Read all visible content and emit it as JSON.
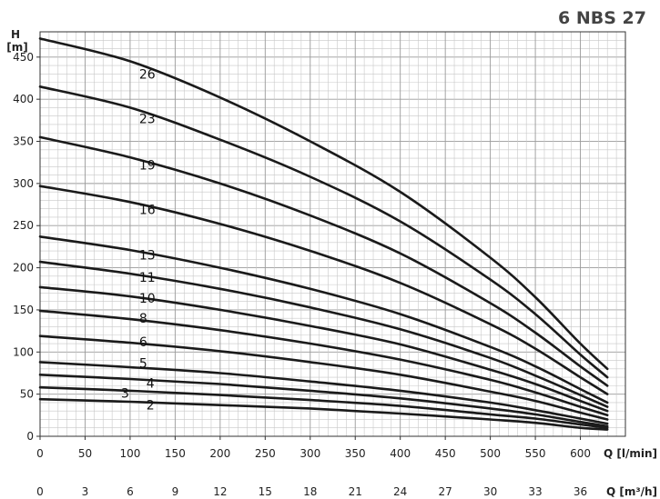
{
  "chart_data": {
    "type": "line",
    "title": "6 NBS 27",
    "ylabel": "H",
    "ylabel_unit": "[m]",
    "xlabel": "Q [l/min]",
    "xlabel2": "Q [m³/h]",
    "xlim": [
      0,
      650
    ],
    "ylim": [
      0,
      480
    ],
    "x_ticks": [
      0,
      50,
      100,
      150,
      200,
      250,
      300,
      350,
      400,
      450,
      500,
      550,
      600
    ],
    "x2_ticks": [
      0,
      3,
      6,
      9,
      12,
      15,
      18,
      21,
      24,
      27,
      30,
      33,
      36
    ],
    "y_ticks": [
      0,
      50,
      100,
      150,
      200,
      250,
      300,
      350,
      400,
      450
    ],
    "grid": true,
    "series": [
      {
        "name": "26",
        "label_at": [
          110,
          430
        ],
        "x": [
          0,
          100,
          200,
          300,
          400,
          500,
          550,
          600,
          630
        ],
        "y": [
          472,
          445,
          402,
          350,
          290,
          212,
          165,
          110,
          80
        ]
      },
      {
        "name": "23",
        "label_at": [
          110,
          377
        ],
        "x": [
          0,
          100,
          200,
          300,
          400,
          500,
          550,
          600,
          630
        ],
        "y": [
          415,
          390,
          352,
          308,
          255,
          186,
          145,
          97,
          70
        ]
      },
      {
        "name": "19",
        "label_at": [
          110,
          322
        ],
        "x": [
          0,
          100,
          200,
          300,
          400,
          500,
          550,
          600,
          630
        ],
        "y": [
          355,
          331,
          300,
          262,
          217,
          158,
          123,
          83,
          60
        ]
      },
      {
        "name": "16",
        "label_at": [
          110,
          269
        ],
        "x": [
          0,
          100,
          200,
          300,
          400,
          500,
          550,
          600,
          630
        ],
        "y": [
          297,
          278,
          252,
          220,
          182,
          133,
          104,
          70,
          50
        ]
      },
      {
        "name": "13",
        "label_at": [
          110,
          215
        ],
        "x": [
          0,
          100,
          200,
          300,
          400,
          500,
          550,
          600,
          630
        ],
        "y": [
          237,
          221,
          200,
          175,
          145,
          106,
          83,
          56,
          40
        ]
      },
      {
        "name": "11",
        "label_at": [
          110,
          189
        ],
        "x": [
          0,
          100,
          200,
          300,
          400,
          500,
          550,
          600,
          630
        ],
        "y": [
          207,
          193,
          175,
          153,
          127,
          93,
          72,
          49,
          35
        ]
      },
      {
        "name": "10",
        "label_at": [
          110,
          164
        ],
        "x": [
          0,
          100,
          200,
          300,
          400,
          500,
          550,
          600,
          630
        ],
        "y": [
          177,
          166,
          150,
          131,
          109,
          79,
          62,
          42,
          30
        ]
      },
      {
        "name": "8",
        "label_at": [
          110,
          140
        ],
        "x": [
          0,
          100,
          200,
          300,
          400,
          500,
          550,
          600,
          630
        ],
        "y": [
          149,
          139,
          126,
          110,
          91,
          67,
          52,
          35,
          25
        ]
      },
      {
        "name": "6",
        "label_at": [
          110,
          112
        ],
        "x": [
          0,
          100,
          200,
          300,
          400,
          500,
          550,
          600,
          630
        ],
        "y": [
          119,
          111,
          101,
          88,
          73,
          53,
          42,
          28,
          20
        ]
      },
      {
        "name": "5",
        "label_at": [
          110,
          87
        ],
        "x": [
          0,
          100,
          200,
          300,
          400,
          500,
          550,
          600,
          630
        ],
        "y": [
          88,
          82,
          75,
          65,
          54,
          40,
          31,
          21,
          15
        ]
      },
      {
        "name": "4",
        "label_at": [
          118,
          63
        ],
        "x": [
          0,
          100,
          200,
          300,
          400,
          500,
          550,
          600,
          630
        ],
        "y": [
          73,
          68,
          62,
          54,
          45,
          33,
          26,
          17,
          12
        ]
      },
      {
        "name": "3",
        "label_at": [
          90,
          51
        ],
        "x": [
          0,
          100,
          200,
          300,
          400,
          500,
          550,
          600,
          630
        ],
        "y": [
          58,
          54,
          49,
          43,
          36,
          26,
          21,
          14,
          10
        ]
      },
      {
        "name": "2",
        "label_at": [
          118,
          37
        ],
        "x": [
          0,
          100,
          200,
          300,
          400,
          500,
          550,
          600,
          630
        ],
        "y": [
          44,
          41,
          37,
          33,
          27,
          20,
          16,
          10,
          8
        ]
      }
    ]
  }
}
